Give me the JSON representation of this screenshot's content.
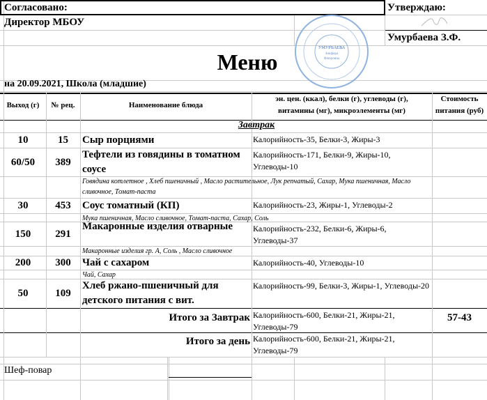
{
  "header": {
    "agreed": "Согласовано:",
    "director": "Директор МБОУ",
    "approve": "Утверждаю:",
    "approver": "Умурбаева З.Ф.",
    "stamp_text": [
      "УМУРБАЕВА",
      "Зинфира",
      "Флюровна"
    ]
  },
  "title": "Меню",
  "subtitle": "на 20.09.2021, Школа (младшие)",
  "columns": {
    "yield": "Выход (г)",
    "recipe": "№ рец.",
    "name": "Наименование блюда",
    "nutrition_1": "эн. цен. (ккал), белки (г), углеводы (г),",
    "nutrition_2": "витамины (мг), микроэлементы (мг)",
    "cost_1": "Стоимость",
    "cost_2": "питания (руб)"
  },
  "meal": "Завтрак",
  "rows": [
    {
      "yield": "10",
      "recipe": "15",
      "name": "Сыр порциями",
      "nutrition": "Калорийность-35, Белки-3, Жиры-3"
    },
    {
      "yield": "60/50",
      "recipe": "389",
      "name": "Тефтели из говядины  в томатном соусе",
      "nutrition": "Калорийность-171, Белки-9, Жиры-10, Углеводы-10",
      "ingredients": "Говядина котлетное , Хлеб пшеничный , Масло растительное, Лук репчатый, Сахар, Мука пшеничная, Масло сливочное, Томат-паста"
    },
    {
      "yield": "30",
      "recipe": "453",
      "name": "Соус томатный (КП)",
      "nutrition": "Калорийность-23, Жиры-1, Углеводы-2",
      "ingredients": "Мука пшеничная, Масло сливочное, Томат-паста, Сахар, Соль"
    },
    {
      "yield": "150",
      "recipe": "291",
      "name": "Макаронные изделия отварные",
      "nutrition": "Калорийность-232, Белки-6, Жиры-6, Углеводы-37",
      "ingredients": "Макаронные изделия гр. А, Соль , Масло сливочное"
    },
    {
      "yield": "200",
      "recipe": "300",
      "name": "Чай с сахаром",
      "nutrition": "Калорийность-40, Углеводы-10",
      "ingredients": "Чай, Сахар"
    },
    {
      "yield": "50",
      "recipe": "109",
      "name": "Хлеб ржано-пшеничный для детского питания с вит.",
      "nutrition": "Калорийность-99, Белки-3, Жиры-1, Углеводы-20"
    }
  ],
  "total_meal": {
    "label": "Итого за Завтрак",
    "nutrition": "Калорийность-600, Белки-21, Жиры-21, Углеводы-79",
    "cost": "57-43"
  },
  "total_day": {
    "label": "Итого за день",
    "nutrition": "Калорийность-600, Белки-21, Жиры-21, Углеводы-79"
  },
  "footer": {
    "chef": "Шеф-повар"
  },
  "colors": {
    "stamp": "#8fb3e0",
    "grid": "#c8c8c8"
  }
}
